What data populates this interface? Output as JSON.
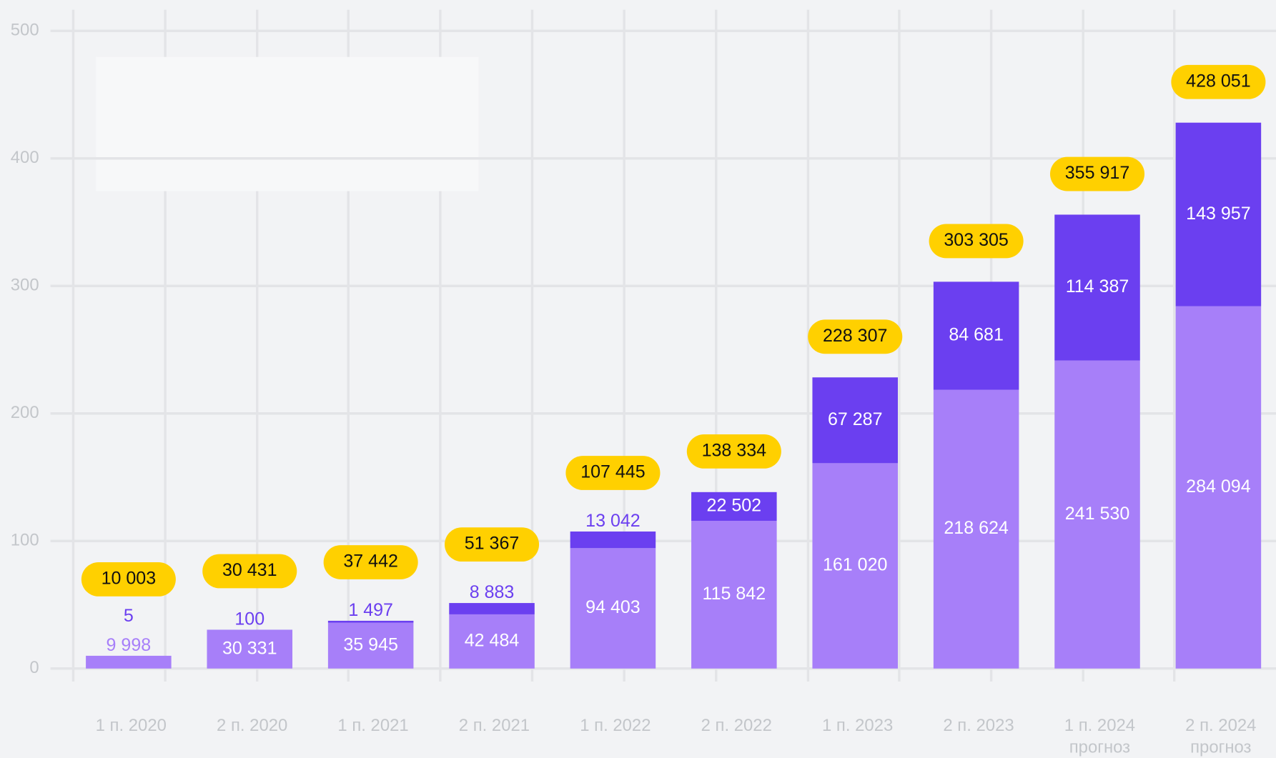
{
  "chart_data": {
    "type": "stacked-bar",
    "categories": [
      "1 п. 2020",
      "2 п. 2020",
      "1 п. 2021",
      "2 п. 2021",
      "1 п. 2022",
      "2 п. 2022",
      "1 п. 2023",
      "2 п. 2023",
      "1 п. 2024",
      "2 п. 2024"
    ],
    "category_notes": [
      null,
      null,
      null,
      null,
      null,
      null,
      null,
      null,
      "прогноз",
      "прогноз"
    ],
    "series": [
      {
        "color": "#a77ff9",
        "values": [
          9.998,
          30.331,
          35.945,
          42.484,
          94.403,
          115.842,
          161.02,
          218.624,
          241.53,
          284.094
        ],
        "value_labels": [
          "9 998",
          "30 331",
          "35 945",
          "42 484",
          "94 403",
          "115 842",
          "161 020",
          "218 624",
          "241 530",
          "284 094"
        ]
      },
      {
        "color": "#6b3ff0",
        "values": [
          0.005,
          0.1,
          1.497,
          8.883,
          13.042,
          22.502,
          67.287,
          84.681,
          114.387,
          143.957
        ],
        "value_labels": [
          "5",
          "100",
          "1 497",
          "8 883",
          "13 042",
          "22 502",
          "67 287",
          "84 681",
          "114 387",
          "143 957"
        ]
      }
    ],
    "totals": {
      "color": "#ffd000",
      "values": [
        10.003,
        30.431,
        37.442,
        51.367,
        107.445,
        138.334,
        228.307,
        303.305,
        355.917,
        428.051
      ],
      "value_labels": [
        "10 003",
        "30 431",
        "37 442",
        "51 367",
        "107 445",
        "138 334",
        "228 307",
        "303 305",
        "355 917",
        "428 051"
      ]
    },
    "ylim": [
      0,
      500
    ],
    "yticks": [
      0,
      100,
      200,
      300,
      400,
      500
    ],
    "grid": true
  }
}
